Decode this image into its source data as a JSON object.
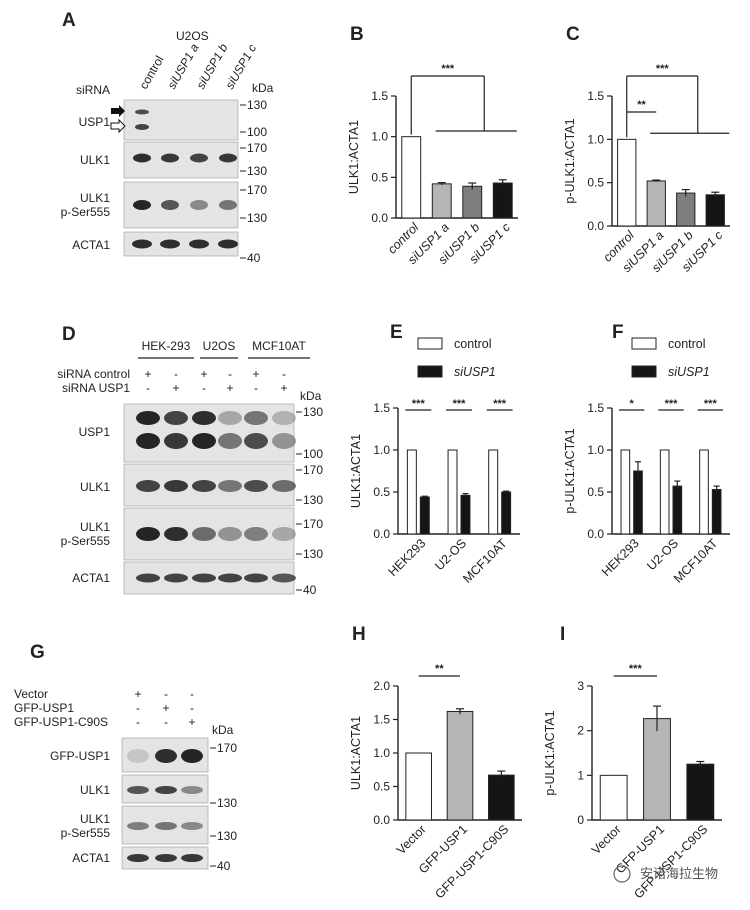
{
  "panels": {
    "A": {
      "letter": "A",
      "cell_line": "U2OS",
      "row_title": "siRNA",
      "lanes": [
        "control",
        "siUSP1 a",
        "siUSP1 b",
        "siUSP1 c"
      ],
      "kda_header": "kDa",
      "rows": [
        {
          "label": [
            "USP1"
          ],
          "markers": [
            "130",
            "100"
          ]
        },
        {
          "label": [
            "ULK1"
          ],
          "markers": [
            "170",
            "130"
          ]
        },
        {
          "label": [
            "ULK1",
            "p-Ser555"
          ],
          "markers": [
            "170",
            "130"
          ]
        },
        {
          "label": [
            "ACTA1"
          ],
          "markers": [
            "40"
          ]
        }
      ]
    },
    "D": {
      "letter": "D",
      "groups": [
        "HEK-293",
        "U2OS",
        "MCF10AT"
      ],
      "conditions": [
        {
          "label": "siRNA control",
          "signs": [
            "+",
            "-",
            "+",
            "-",
            "+",
            "-"
          ]
        },
        {
          "label": "siRNA USP1",
          "signs": [
            "-",
            "+",
            "-",
            "+",
            "-",
            "+"
          ]
        }
      ],
      "kda_header": "kDa",
      "rows": [
        {
          "label": [
            "USP1"
          ],
          "markers": [
            "130",
            "100"
          ]
        },
        {
          "label": [
            "ULK1"
          ],
          "markers": [
            "170",
            "130"
          ]
        },
        {
          "label": [
            "ULK1",
            "p-Ser555"
          ],
          "markers": [
            "170",
            "130"
          ]
        },
        {
          "label": [
            "ACTA1"
          ],
          "markers": [
            "40"
          ]
        }
      ]
    },
    "G": {
      "letter": "G",
      "conditions": [
        {
          "label": "Vector",
          "signs": [
            "+",
            "-",
            "-"
          ]
        },
        {
          "label": "GFP-USP1",
          "signs": [
            "-",
            "+",
            "-"
          ]
        },
        {
          "label": "GFP-USP1-C90S",
          "signs": [
            "-",
            "-",
            "+"
          ]
        }
      ],
      "kda_header": "kDa",
      "rows": [
        {
          "label": [
            "GFP-USP1"
          ],
          "markers": [
            "170"
          ]
        },
        {
          "label": [
            "ULK1"
          ],
          "markers": [
            "130"
          ]
        },
        {
          "label": [
            "ULK1",
            "p-Ser555"
          ],
          "markers": [
            "130"
          ]
        },
        {
          "label": [
            "ACTA1"
          ],
          "markers": [
            "40"
          ]
        }
      ]
    }
  },
  "chart_data": [
    {
      "id": "B",
      "letter": "B",
      "type": "bar",
      "ylabel": "ULK1:ACTA1",
      "categories": [
        "control",
        "siUSP1 a",
        "siUSP1 b",
        "siUSP1 c"
      ],
      "values": [
        1.0,
        0.42,
        0.39,
        0.43
      ],
      "errors": [
        0,
        0.015,
        0.04,
        0.04
      ],
      "bar_colors": [
        "#ffffff",
        "#b5b5b5",
        "#7e7e7e",
        "#151515"
      ],
      "ylim": [
        0,
        1.5
      ],
      "yticks": [
        "0.0",
        "0.5",
        "1.0",
        "1.5"
      ],
      "significance": [
        {
          "label": "***",
          "style": "one-vs-group"
        }
      ]
    },
    {
      "id": "C",
      "letter": "C",
      "type": "bar",
      "ylabel": "p-ULK1:ACTA1",
      "categories": [
        "control",
        "siUSP1 a",
        "siUSP1 b",
        "siUSP1 c"
      ],
      "values": [
        1.0,
        0.52,
        0.38,
        0.36
      ],
      "errors": [
        0,
        0.01,
        0.04,
        0.03
      ],
      "bar_colors": [
        "#ffffff",
        "#b5b5b5",
        "#7e7e7e",
        "#151515"
      ],
      "ylim": [
        0,
        1.5
      ],
      "yticks": [
        "0.0",
        "0.5",
        "1.0",
        "1.5"
      ],
      "significance": [
        {
          "label": "**",
          "style": "pair"
        },
        {
          "label": "***",
          "style": "one-vs-group"
        }
      ]
    },
    {
      "id": "E",
      "letter": "E",
      "type": "bar",
      "ylabel": "ULK1:ACTA1",
      "categories": [
        "HEK293",
        "U2-OS",
        "MCF10AT"
      ],
      "series": [
        {
          "name": "control",
          "color": "#ffffff",
          "values": [
            1.0,
            1.0,
            1.0
          ],
          "errors": [
            0,
            0,
            0
          ]
        },
        {
          "name": "siUSP1",
          "color": "#151515",
          "values": [
            0.44,
            0.46,
            0.5
          ],
          "errors": [
            0.01,
            0.02,
            0.01
          ]
        }
      ],
      "ylim": [
        0,
        1.5
      ],
      "yticks": [
        "0.0",
        "0.5",
        "1.0",
        "1.5"
      ],
      "significance": [
        "***",
        "***",
        "***"
      ],
      "legend": "top"
    },
    {
      "id": "F",
      "letter": "F",
      "type": "bar",
      "ylabel": "p-ULK1:ACTA1",
      "categories": [
        "HEK293",
        "U2-OS",
        "MCF10AT"
      ],
      "series": [
        {
          "name": "control",
          "color": "#ffffff",
          "values": [
            1.0,
            1.0,
            1.0
          ],
          "errors": [
            0,
            0,
            0
          ]
        },
        {
          "name": "siUSP1",
          "color": "#151515",
          "values": [
            0.75,
            0.57,
            0.53
          ],
          "errors": [
            0.11,
            0.06,
            0.04
          ]
        }
      ],
      "ylim": [
        0,
        1.5
      ],
      "yticks": [
        "0.0",
        "0.5",
        "1.0",
        "1.5"
      ],
      "significance": [
        "*",
        "***",
        "***"
      ],
      "legend": "top"
    },
    {
      "id": "H",
      "letter": "H",
      "type": "bar",
      "ylabel": "ULK1:ACTA1",
      "categories": [
        "Vector",
        "GFP-USP1",
        "GFP-USP1-C90S"
      ],
      "values": [
        1.0,
        1.62,
        0.67
      ],
      "errors": [
        0,
        0.04,
        0.06
      ],
      "bar_colors": [
        "#ffffff",
        "#b5b5b5",
        "#151515"
      ],
      "ylim": [
        0,
        2.0
      ],
      "yticks": [
        "0.0",
        "0.5",
        "1.0",
        "1.5",
        "2.0"
      ],
      "significance": [
        {
          "label": "**",
          "style": "pair"
        }
      ]
    },
    {
      "id": "I",
      "letter": "I",
      "type": "bar",
      "ylabel": "p-ULK1:ACTA1",
      "categories": [
        "Vector",
        "GFP-USP1",
        "GFP-USP1-C90S"
      ],
      "values": [
        1.0,
        2.27,
        1.25
      ],
      "errors": [
        0,
        0.28,
        0.06
      ],
      "bar_colors": [
        "#ffffff",
        "#b5b5b5",
        "#151515"
      ],
      "ylim": [
        0,
        3
      ],
      "yticks": [
        "0",
        "1",
        "2",
        "3"
      ],
      "significance": [
        {
          "label": "***",
          "style": "pair"
        }
      ]
    }
  ],
  "watermark": "安诺海拉生物"
}
